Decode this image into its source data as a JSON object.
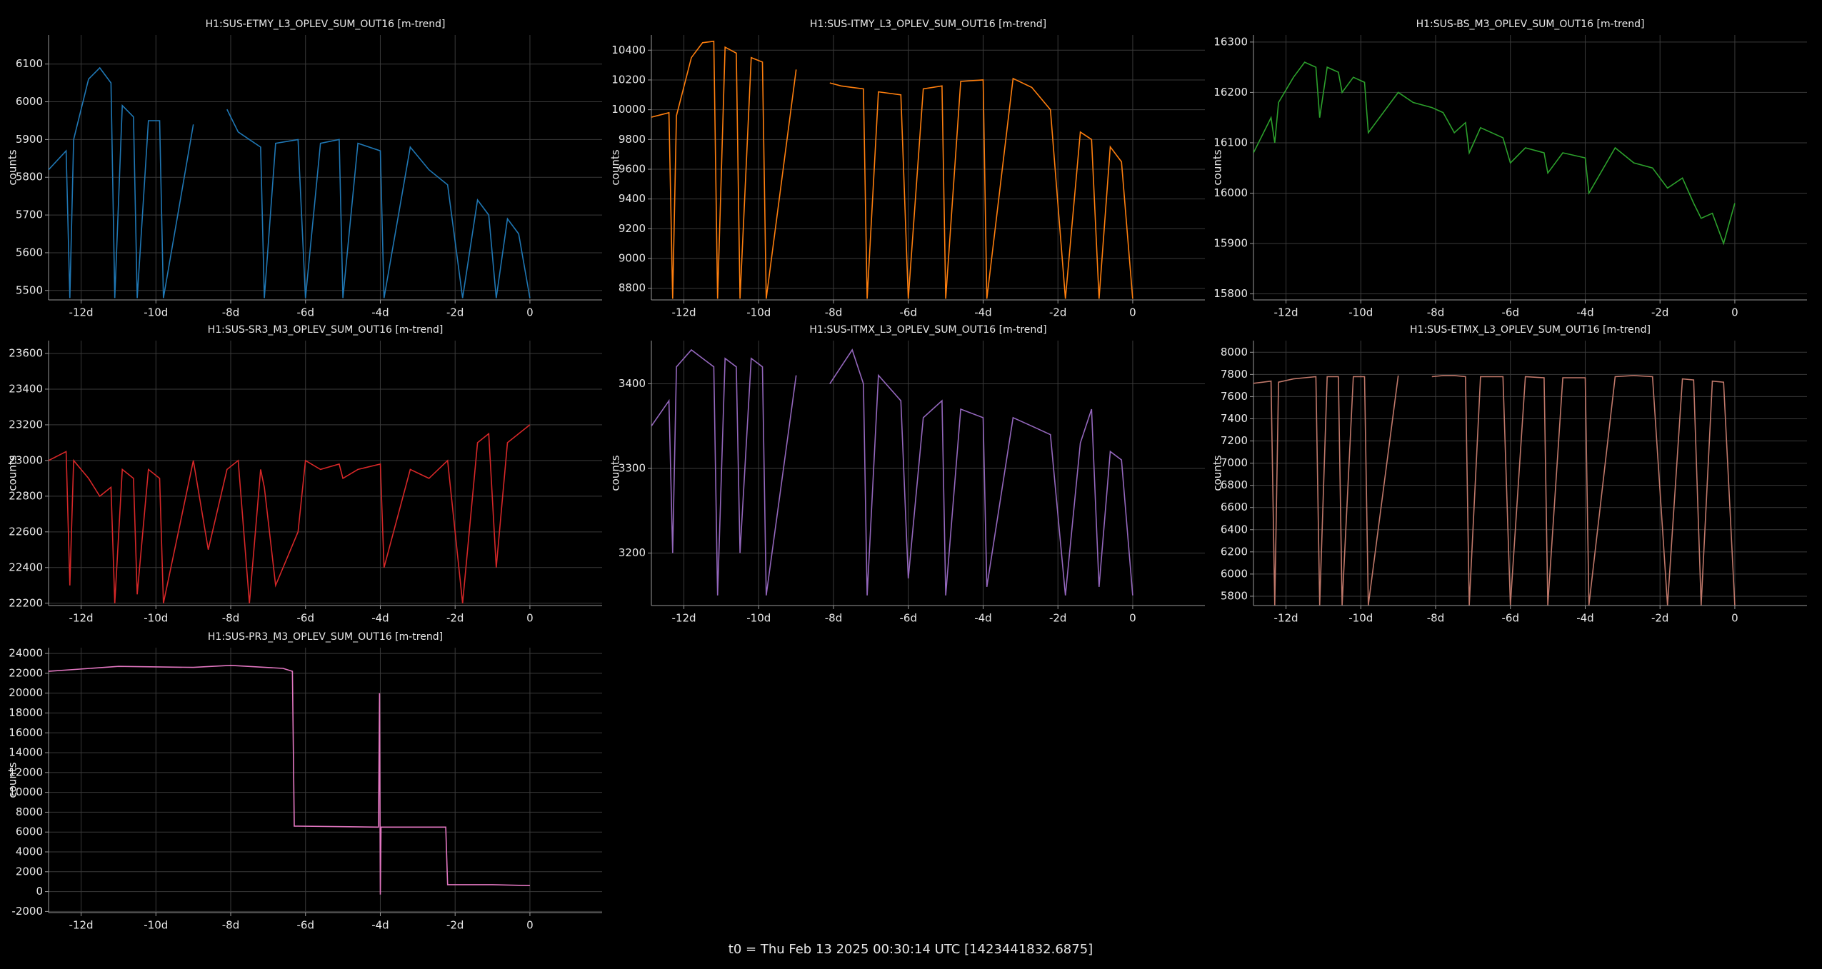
{
  "chart_data": [
    {
      "type": "line",
      "title": "H1:SUS-ETMY_L3_OPLEV_SUM_OUT16 [m-trend]",
      "ylabel": "counts",
      "color": "#1f77b4",
      "grid": true,
      "x": [
        -12.87,
        -12.4,
        -12.3,
        -12.2,
        -11.8,
        -11.5,
        -11.2,
        -11.1,
        -10.9,
        -10.6,
        -10.5,
        -10.2,
        -9.9,
        -9.8,
        -9.0,
        -8.6,
        -8.1,
        -7.8,
        -7.5,
        -7.2,
        -7.1,
        -6.8,
        -6.2,
        -6.0,
        -5.6,
        -5.1,
        -5.0,
        -4.6,
        -4.0,
        -3.9,
        -3.2,
        -2.7,
        -2.2,
        -1.8,
        -1.4,
        -1.1,
        -0.9,
        -0.6,
        -0.3,
        0
      ],
      "values": [
        5820,
        5870,
        5480,
        5900,
        6060,
        6090,
        6050,
        5480,
        5990,
        5960,
        5480,
        5950,
        5950,
        5480,
        5940,
        null,
        5980,
        5920,
        5900,
        5880,
        5480,
        5890,
        5900,
        5480,
        5890,
        5900,
        5480,
        5890,
        5870,
        5480,
        5880,
        5820,
        5780,
        5480,
        5740,
        5700,
        5480,
        5690,
        5650,
        5480
      ],
      "xlim": [
        -12.87,
        1.93
      ],
      "ylim": [
        5475,
        6177
      ],
      "xticks": [
        {
          "value": -12,
          "label": "-12d"
        },
        {
          "value": -10,
          "label": "-10d"
        },
        {
          "value": -8,
          "label": "-8d"
        },
        {
          "value": -6,
          "label": "-6d"
        },
        {
          "value": -4,
          "label": "-4d"
        },
        {
          "value": -2,
          "label": "-2d"
        },
        0
      ],
      "yticks": [
        5500,
        5600,
        5700,
        5800,
        5900,
        6000,
        6100
      ]
    },
    {
      "type": "line",
      "title": "H1:SUS-ITMY_L3_OPLEV_SUM_OUT16 [m-trend]",
      "ylabel": "counts",
      "color": "#ff7f0e",
      "grid": true,
      "x": [
        -12.87,
        -12.4,
        -12.3,
        -12.2,
        -11.8,
        -11.5,
        -11.2,
        -11.1,
        -10.9,
        -10.6,
        -10.5,
        -10.2,
        -9.9,
        -9.8,
        -9.0,
        -8.6,
        -8.1,
        -7.8,
        -7.5,
        -7.2,
        -7.1,
        -6.8,
        -6.2,
        -6.0,
        -5.6,
        -5.1,
        -5.0,
        -4.6,
        -4.0,
        -3.9,
        -3.2,
        -2.7,
        -2.2,
        -1.8,
        -1.4,
        -1.1,
        -0.9,
        -0.6,
        -0.3,
        0
      ],
      "values": [
        9950,
        9980,
        8730,
        9960,
        10350,
        10450,
        10460,
        8730,
        10420,
        10380,
        8730,
        10350,
        10320,
        8730,
        10270,
        null,
        10180,
        10160,
        10150,
        10140,
        8730,
        10120,
        10100,
        8730,
        10140,
        10160,
        8730,
        10190,
        10200,
        8730,
        10210,
        10150,
        10000,
        8730,
        9850,
        9800,
        8730,
        9750,
        9650,
        8730
      ],
      "xlim": [
        -12.87,
        1.93
      ],
      "ylim": [
        8722,
        10502
      ],
      "xticks": [
        {
          "value": -12,
          "label": "-12d"
        },
        {
          "value": -10,
          "label": "-10d"
        },
        {
          "value": -8,
          "label": "-8d"
        },
        {
          "value": -6,
          "label": "-6d"
        },
        {
          "value": -4,
          "label": "-4d"
        },
        {
          "value": -2,
          "label": "-2d"
        },
        0
      ],
      "yticks": [
        8800,
        9000,
        9200,
        9400,
        9600,
        9800,
        10000,
        10200,
        10400
      ]
    },
    {
      "type": "line",
      "title": "H1:SUS-BS_M3_OPLEV_SUM_OUT16 [m-trend]",
      "ylabel": "counts",
      "color": "#2ca02c",
      "grid": true,
      "x": [
        -12.87,
        -12.4,
        -12.3,
        -12.2,
        -11.8,
        -11.5,
        -11.2,
        -11.1,
        -10.9,
        -10.6,
        -10.5,
        -10.2,
        -9.9,
        -9.8,
        -9.0,
        -8.6,
        -8.1,
        -7.8,
        -7.5,
        -7.2,
        -7.1,
        -6.8,
        -6.2,
        -6.0,
        -5.6,
        -5.1,
        -5.0,
        -4.6,
        -4.0,
        -3.9,
        -3.2,
        -2.7,
        -2.2,
        -1.8,
        -1.4,
        -1.1,
        -0.9,
        -0.6,
        -0.3,
        0
      ],
      "values": [
        16080,
        16150,
        16100,
        16180,
        16230,
        16260,
        16250,
        16150,
        16250,
        16240,
        16200,
        16230,
        16220,
        16120,
        16200,
        16180,
        16170,
        16160,
        16120,
        16140,
        16080,
        16130,
        16110,
        16060,
        16090,
        16080,
        16040,
        16080,
        16070,
        16000,
        16090,
        16060,
        16050,
        16010,
        16030,
        15980,
        15950,
        15960,
        15900,
        15980
      ],
      "xlim": [
        -12.87,
        1.93
      ],
      "ylim": [
        15788,
        16314
      ],
      "xticks": [
        {
          "value": -12,
          "label": "-12d"
        },
        {
          "value": -10,
          "label": "-10d"
        },
        {
          "value": -8,
          "label": "-8d"
        },
        {
          "value": -6,
          "label": "-6d"
        },
        {
          "value": -4,
          "label": "-4d"
        },
        {
          "value": -2,
          "label": "-2d"
        },
        0
      ],
      "yticks": [
        15800,
        15900,
        16000,
        16100,
        16200,
        16300
      ]
    },
    {
      "type": "line",
      "title": "H1:SUS-SR3_M3_OPLEV_SUM_OUT16 [m-trend]",
      "ylabel": "counts",
      "color": "#d62728",
      "grid": true,
      "x": [
        -12.87,
        -12.4,
        -12.3,
        -12.2,
        -11.8,
        -11.5,
        -11.2,
        -11.1,
        -10.9,
        -10.6,
        -10.5,
        -10.2,
        -9.9,
        -9.8,
        -9.0,
        -8.6,
        -8.1,
        -7.8,
        -7.5,
        -7.2,
        -7.1,
        -6.8,
        -6.2,
        -6.0,
        -5.6,
        -5.1,
        -5.0,
        -4.6,
        -4.0,
        -3.9,
        -3.2,
        -2.7,
        -2.2,
        -1.8,
        -1.4,
        -1.1,
        -0.9,
        -0.6,
        -0.3,
        0
      ],
      "values": [
        23000,
        23050,
        22300,
        23000,
        22900,
        22800,
        22850,
        22200,
        22950,
        22900,
        22250,
        22950,
        22900,
        22200,
        23000,
        22500,
        22950,
        23000,
        22200,
        22950,
        22850,
        22300,
        22600,
        23000,
        22950,
        22980,
        22900,
        22950,
        22980,
        22400,
        22950,
        22900,
        23000,
        22200,
        23100,
        23150,
        22400,
        23100,
        23150,
        23200
      ],
      "xlim": [
        -12.87,
        1.93
      ],
      "ylim": [
        22187,
        23672
      ],
      "xticks": [
        {
          "value": -12,
          "label": "-12d"
        },
        {
          "value": -10,
          "label": "-10d"
        },
        {
          "value": -8,
          "label": "-8d"
        },
        {
          "value": -6,
          "label": "-6d"
        },
        {
          "value": -4,
          "label": "-4d"
        },
        {
          "value": -2,
          "label": "-2d"
        },
        0
      ],
      "yticks": [
        22200,
        22400,
        22600,
        22800,
        23000,
        23200,
        23400,
        23600
      ]
    },
    {
      "type": "line",
      "title": "H1:SUS-ITMX_L3_OPLEV_SUM_OUT16 [m-trend]",
      "ylabel": "counts",
      "color": "#9467bd",
      "grid": true,
      "x": [
        -12.87,
        -12.4,
        -12.3,
        -12.2,
        -11.8,
        -11.5,
        -11.2,
        -11.1,
        -10.9,
        -10.6,
        -10.5,
        -10.2,
        -9.9,
        -9.8,
        -9.0,
        -8.6,
        -8.1,
        -7.8,
        -7.5,
        -7.2,
        -7.1,
        -6.8,
        -6.2,
        -6.0,
        -5.6,
        -5.1,
        -5.0,
        -4.6,
        -4.0,
        -3.9,
        -3.2,
        -2.7,
        -2.2,
        -1.8,
        -1.4,
        -1.1,
        -0.9,
        -0.6,
        -0.3,
        0
      ],
      "values": [
        3350,
        3380,
        3200,
        3420,
        3440,
        3430,
        3420,
        3150,
        3430,
        3420,
        3200,
        3430,
        3420,
        3150,
        3410,
        null,
        3400,
        3420,
        3440,
        3400,
        3150,
        3410,
        3380,
        3170,
        3360,
        3380,
        3150,
        3370,
        3360,
        3160,
        3360,
        3350,
        3340,
        3150,
        3330,
        3370,
        3160,
        3320,
        3310,
        3150
      ],
      "xlim": [
        -12.87,
        1.93
      ],
      "ylim": [
        3138,
        3451
      ],
      "xticks": [
        {
          "value": -12,
          "label": "-12d"
        },
        {
          "value": -10,
          "label": "-10d"
        },
        {
          "value": -8,
          "label": "-8d"
        },
        {
          "value": -6,
          "label": "-6d"
        },
        {
          "value": -4,
          "label": "-4d"
        },
        {
          "value": -2,
          "label": "-2d"
        },
        0
      ],
      "yticks": [
        3200,
        3300,
        3400
      ]
    },
    {
      "type": "line",
      "title": "H1:SUS-ETMX_L3_OPLEV_SUM_OUT16 [m-trend]",
      "ylabel": "counts",
      "color": "#c0786a",
      "grid": true,
      "x": [
        -12.87,
        -12.4,
        -12.3,
        -12.2,
        -11.8,
        -11.5,
        -11.2,
        -11.1,
        -10.9,
        -10.6,
        -10.5,
        -10.2,
        -9.9,
        -9.8,
        -9.0,
        -8.6,
        -8.1,
        -7.8,
        -7.5,
        -7.2,
        -7.1,
        -6.8,
        -6.2,
        -6.0,
        -5.6,
        -5.1,
        -5.0,
        -4.6,
        -4.0,
        -3.9,
        -3.2,
        -2.7,
        -2.2,
        -1.8,
        -1.4,
        -1.1,
        -0.9,
        -0.6,
        -0.3,
        0
      ],
      "values": [
        7720,
        7740,
        5720,
        7730,
        7760,
        7770,
        7780,
        5720,
        7780,
        7780,
        5720,
        7780,
        7780,
        5720,
        7790,
        null,
        7780,
        7790,
        7790,
        7780,
        5720,
        7780,
        7780,
        5720,
        7780,
        7770,
        5720,
        7770,
        7770,
        5720,
        7780,
        7790,
        7780,
        5720,
        7760,
        7750,
        5720,
        7740,
        7730,
        5720
      ],
      "xlim": [
        -12.87,
        1.93
      ],
      "ylim": [
        5716,
        8105
      ],
      "xticks": [
        {
          "value": -12,
          "label": "-12d"
        },
        {
          "value": -10,
          "label": "-10d"
        },
        {
          "value": -8,
          "label": "-8d"
        },
        {
          "value": -6,
          "label": "-6d"
        },
        {
          "value": -4,
          "label": "-4d"
        },
        {
          "value": -2,
          "label": "-2d"
        },
        0
      ],
      "yticks": [
        5800,
        6000,
        6200,
        6400,
        6600,
        6800,
        7000,
        7200,
        7400,
        7600,
        7800,
        8000
      ]
    },
    {
      "type": "line",
      "title": "H1:SUS-PR3_M3_OPLEV_SUM_OUT16 [m-trend]",
      "ylabel": "counts",
      "color": "#e377c2",
      "grid": true,
      "x": [
        -12.87,
        -11,
        -9,
        -8,
        -6.6,
        -6.35,
        -6.3,
        -6.2,
        -4.05,
        -4.02,
        -4.0,
        -3.98,
        -2.25,
        -2.2,
        -1,
        0
      ],
      "values": [
        22200,
        22700,
        22600,
        22800,
        22500,
        22200,
        6600,
        6600,
        6500,
        20000,
        -300,
        6500,
        6500,
        700,
        700,
        600
      ],
      "xlim": [
        -12.87,
        1.93
      ],
      "ylim": [
        -2117,
        24585
      ],
      "xticks": [
        {
          "value": -12,
          "label": "-12d"
        },
        {
          "value": -10,
          "label": "-10d"
        },
        {
          "value": -8,
          "label": "-8d"
        },
        {
          "value": -6,
          "label": "-6d"
        },
        {
          "value": -4,
          "label": "-4d"
        },
        {
          "value": -2,
          "label": "-2d"
        },
        0
      ],
      "yticks": [
        -2000,
        0,
        2000,
        4000,
        6000,
        8000,
        10000,
        12000,
        14000,
        16000,
        18000,
        20000,
        22000,
        24000
      ]
    }
  ],
  "footer": "t0 = Thu Feb 13 2025 00:30:14 UTC [1423441832.6875]"
}
